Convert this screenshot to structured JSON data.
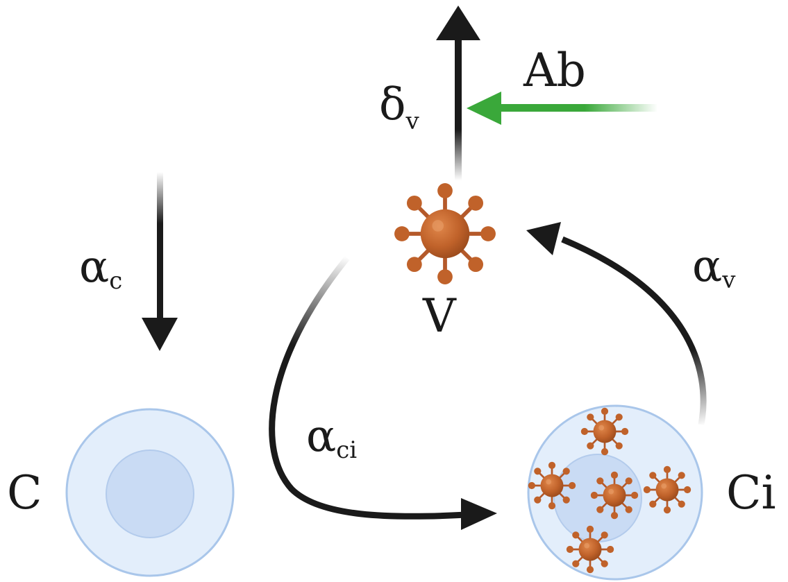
{
  "labels": {
    "delta_v": {
      "main": "δ",
      "sub": "v"
    },
    "ab": "Ab",
    "alpha_c": {
      "main": "α",
      "sub": "c"
    },
    "virus": "V",
    "alpha_v": {
      "main": "α",
      "sub": "v"
    },
    "alpha_ci": {
      "main": "α",
      "sub": "ci"
    },
    "cell": "C",
    "infected_cell": "Ci"
  },
  "colors": {
    "arrow": "#1a1a1a",
    "antibody_arrow": "#3aa83a",
    "virus_body": "#c0622a",
    "virus_dark": "#8e4419",
    "cell_fill": "#e3eefb",
    "cell_outline": "#a9c6ea",
    "nucleus_fill": "#c9dbf4",
    "nucleus_outline": "#b3cbec"
  },
  "icons": {
    "virus": "virus-icon",
    "cell": "cell-icon",
    "infected_cell": "infected-cell-icon"
  }
}
